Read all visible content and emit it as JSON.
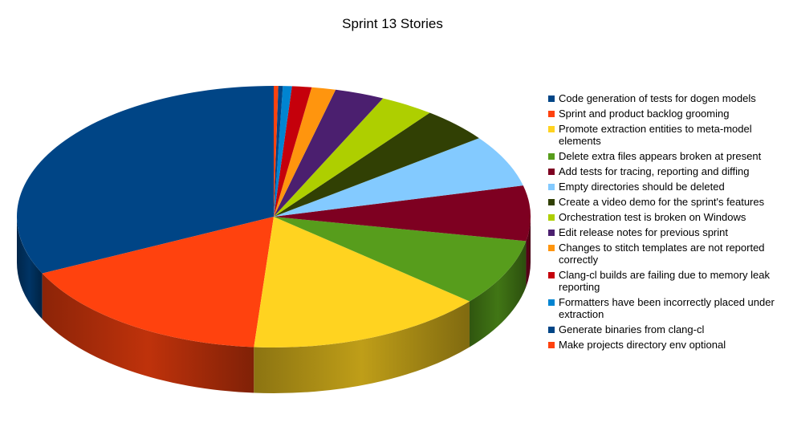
{
  "chart_data": {
    "type": "pie",
    "title": "Sprint 13 Stories",
    "legend_position": "right",
    "three_d": true,
    "series": [
      {
        "name": "Code generation of tests for dogen models",
        "value": 34.0,
        "color": "#004586"
      },
      {
        "name": "Sprint and product backlog grooming",
        "value": 17.6,
        "color": "#FF420E"
      },
      {
        "name": "Promote extraction entities to meta-model elements",
        "value": 15.9,
        "color": "#FFD320"
      },
      {
        "name": "Delete extra files appears broken at present",
        "value": 8.7,
        "color": "#579D1C"
      },
      {
        "name": "Add tests for tracing, reporting and diffing",
        "value": 7.2,
        "color": "#7E0021"
      },
      {
        "name": "Empty directories should be deleted",
        "value": 6.8,
        "color": "#83CAFF"
      },
      {
        "name": "Create a video demo for the sprint's features",
        "value": 4.6,
        "color": "#314004"
      },
      {
        "name": "Orchestration test is broken on Windows",
        "value": 3.6,
        "color": "#AECF00"
      },
      {
        "name": "Edit release notes for previous sprint",
        "value": 3.3,
        "color": "#4B1F6F"
      },
      {
        "name": "Changes to stitch templates are not reported correctly",
        "value": 1.6,
        "color": "#FF950E"
      },
      {
        "name": "Clang-cl builds are failing due to memory leak reporting",
        "value": 1.3,
        "color": "#C5000B"
      },
      {
        "name": "Formatters have been incorrectly placed under extraction",
        "value": 0.6,
        "color": "#0084D1"
      },
      {
        "name": "Generate binaries from clang-cl",
        "value": 0.3,
        "color": "#004586"
      },
      {
        "name": "Make projects directory env optional",
        "value": 0.3,
        "color": "#FF420E"
      }
    ]
  }
}
